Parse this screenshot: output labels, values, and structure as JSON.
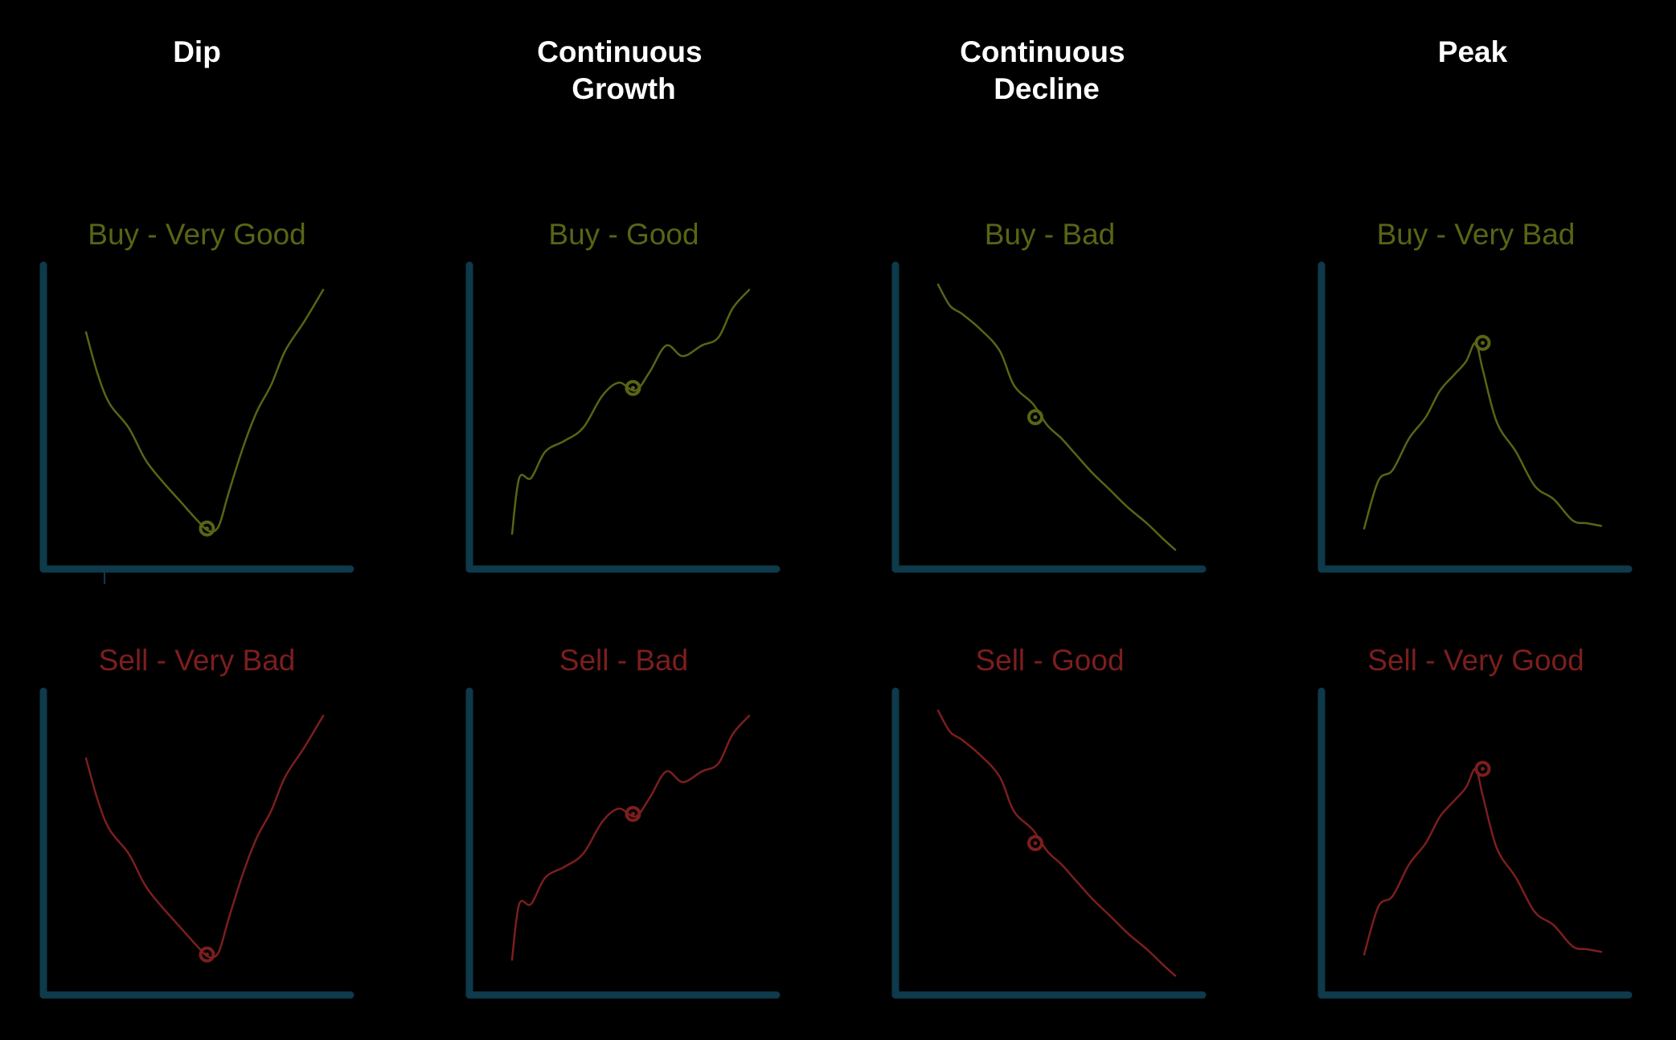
{
  "headings": [
    {
      "lines": [
        "Dip"
      ]
    },
    {
      "lines": [
        "Continuous",
        "Growth"
      ]
    },
    {
      "lines": [
        "Continuous",
        "Decline"
      ]
    },
    {
      "lines": [
        "Peak"
      ]
    }
  ],
  "colors": {
    "background": "#000000",
    "heading": "#ffffff",
    "axis": "#0e3a4b",
    "buy": "#5a6414",
    "sell": "#7c1e1e"
  },
  "rows": [
    {
      "key": "buy",
      "labels": [
        "Buy - Very Good",
        "Buy - Good",
        "Buy - Bad",
        "Buy - Very Bad"
      ]
    },
    {
      "key": "sell",
      "labels": [
        "Sell - Very Bad",
        "Sell -  Bad",
        "Sell - Good",
        "Sell - Very Good"
      ]
    }
  ],
  "patterns": [
    {
      "name": "dip",
      "points": [
        [
          0.0,
          0.82
        ],
        [
          0.05,
          0.66
        ],
        [
          0.1,
          0.55
        ],
        [
          0.18,
          0.46
        ],
        [
          0.25,
          0.34
        ],
        [
          0.32,
          0.26
        ],
        [
          0.4,
          0.18
        ],
        [
          0.47,
          0.11
        ],
        [
          0.52,
          0.07
        ],
        [
          0.56,
          0.09
        ],
        [
          0.6,
          0.21
        ],
        [
          0.66,
          0.38
        ],
        [
          0.72,
          0.52
        ],
        [
          0.78,
          0.62
        ],
        [
          0.84,
          0.75
        ],
        [
          0.92,
          0.86
        ],
        [
          1.0,
          0.98
        ]
      ],
      "marker": [
        0.51,
        0.08
      ]
    },
    {
      "name": "continuous-growth",
      "points": [
        [
          0.0,
          0.06
        ],
        [
          0.03,
          0.27
        ],
        [
          0.08,
          0.27
        ],
        [
          0.14,
          0.37
        ],
        [
          0.22,
          0.41
        ],
        [
          0.3,
          0.46
        ],
        [
          0.38,
          0.58
        ],
        [
          0.45,
          0.63
        ],
        [
          0.52,
          0.6
        ],
        [
          0.58,
          0.67
        ],
        [
          0.65,
          0.77
        ],
        [
          0.72,
          0.73
        ],
        [
          0.8,
          0.77
        ],
        [
          0.87,
          0.8
        ],
        [
          0.93,
          0.91
        ],
        [
          1.0,
          0.98
        ]
      ],
      "marker": [
        0.51,
        0.61
      ]
    },
    {
      "name": "continuous-decline",
      "points": [
        [
          0.0,
          1.0
        ],
        [
          0.05,
          0.92
        ],
        [
          0.1,
          0.89
        ],
        [
          0.18,
          0.83
        ],
        [
          0.26,
          0.75
        ],
        [
          0.32,
          0.62
        ],
        [
          0.4,
          0.55
        ],
        [
          0.46,
          0.47
        ],
        [
          0.52,
          0.42
        ],
        [
          0.58,
          0.36
        ],
        [
          0.65,
          0.29
        ],
        [
          0.72,
          0.23
        ],
        [
          0.8,
          0.16
        ],
        [
          0.88,
          0.1
        ],
        [
          0.95,
          0.04
        ],
        [
          1.0,
          0.0
        ]
      ],
      "marker": [
        0.41,
        0.5
      ]
    },
    {
      "name": "peak",
      "points": [
        [
          0.0,
          0.08
        ],
        [
          0.06,
          0.26
        ],
        [
          0.12,
          0.3
        ],
        [
          0.19,
          0.42
        ],
        [
          0.26,
          0.5
        ],
        [
          0.32,
          0.6
        ],
        [
          0.38,
          0.66
        ],
        [
          0.43,
          0.71
        ],
        [
          0.47,
          0.78
        ],
        [
          0.5,
          0.68
        ],
        [
          0.56,
          0.48
        ],
        [
          0.64,
          0.37
        ],
        [
          0.72,
          0.24
        ],
        [
          0.8,
          0.19
        ],
        [
          0.88,
          0.11
        ],
        [
          0.94,
          0.1
        ],
        [
          1.0,
          0.09
        ]
      ],
      "marker": [
        0.5,
        0.78
      ]
    }
  ]
}
